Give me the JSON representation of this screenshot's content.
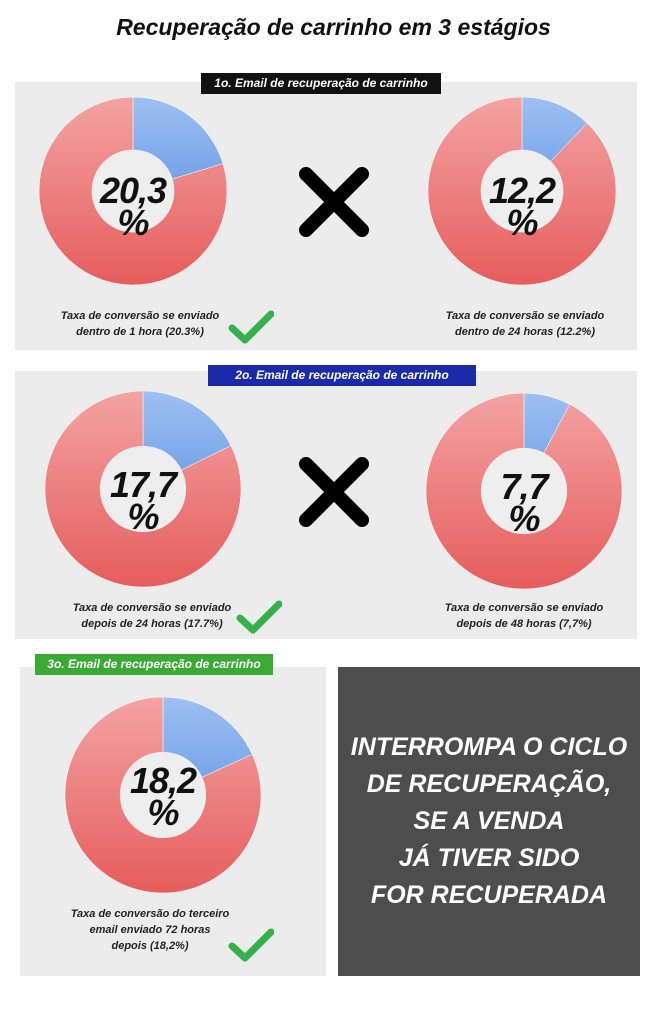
{
  "title": "Recuperação de carrinho em 3 estágios",
  "stages": [
    {
      "label": "1o. Email de recuperação de carrinho",
      "color": "#111111"
    },
    {
      "label": "2o. Email de recuperação de carrinho",
      "color": "#1a2aa8"
    },
    {
      "label": "3o. Email de recuperação de carrinho",
      "color": "#3aaa35"
    }
  ],
  "colors": {
    "slice": "#6f9fe6",
    "rest": "#e65d5d",
    "hole": "#eeeeee",
    "check": "#35b04a",
    "x": "#000000"
  },
  "chart_data": [
    {
      "type": "pie",
      "stage": 1,
      "label_text": "20,3\n%",
      "values": [
        20.3,
        79.7
      ],
      "caption": "Taxa de conversão se enviado dentro de 1 hora (20.3%)",
      "checked": true
    },
    {
      "type": "pie",
      "stage": 1,
      "label_text": "12,2\n%",
      "values": [
        12.2,
        87.8
      ],
      "caption": "Taxa de conversão se enviado dentro de 24 horas (12.2%)",
      "checked": false
    },
    {
      "type": "pie",
      "stage": 2,
      "label_text": "17,7\n%",
      "values": [
        17.7,
        82.3
      ],
      "caption": "Taxa de conversão se enviado depois de 24 horas (17.7%)",
      "checked": true
    },
    {
      "type": "pie",
      "stage": 2,
      "label_text": "7,7\n%",
      "values": [
        7.7,
        92.3
      ],
      "caption": "Taxa de conversão se enviado depois de 48 horas (7,7%)",
      "checked": false
    },
    {
      "type": "pie",
      "stage": 3,
      "label_text": "18,2\n%",
      "values": [
        18.2,
        81.8
      ],
      "caption": "Taxa de conversão do terceiro email  enviado 72 horas depois (18,2%)",
      "checked": true
    }
  ],
  "pct_lines": [
    [
      "20,3",
      "%"
    ],
    [
      "12,2",
      "%"
    ],
    [
      "17,7",
      "%"
    ],
    [
      "7,7",
      "%"
    ],
    [
      "18,2",
      "%"
    ]
  ],
  "caption_lines": [
    [
      "Taxa de conversão se enviado",
      "dentro de 1 hora (20.3%)"
    ],
    [
      "Taxa de conversão se enviado",
      "dentro de 24 horas (12.2%)"
    ],
    [
      "Taxa de conversão se enviado",
      "depois de 24 horas (17.7%)"
    ],
    [
      "Taxa de conversão se enviado",
      "depois de 48 horas (7,7%)"
    ],
    [
      "Taxa de conversão do terceiro",
      "email  enviado 72 horas",
      "depois (18,2%)"
    ]
  ],
  "stop_message": [
    "INTERROMPA O CICLO",
    "DE RECUPERAÇÃO,",
    "SE A VENDA",
    "JÁ TIVER SIDO",
    "FOR RECUPERADA"
  ]
}
